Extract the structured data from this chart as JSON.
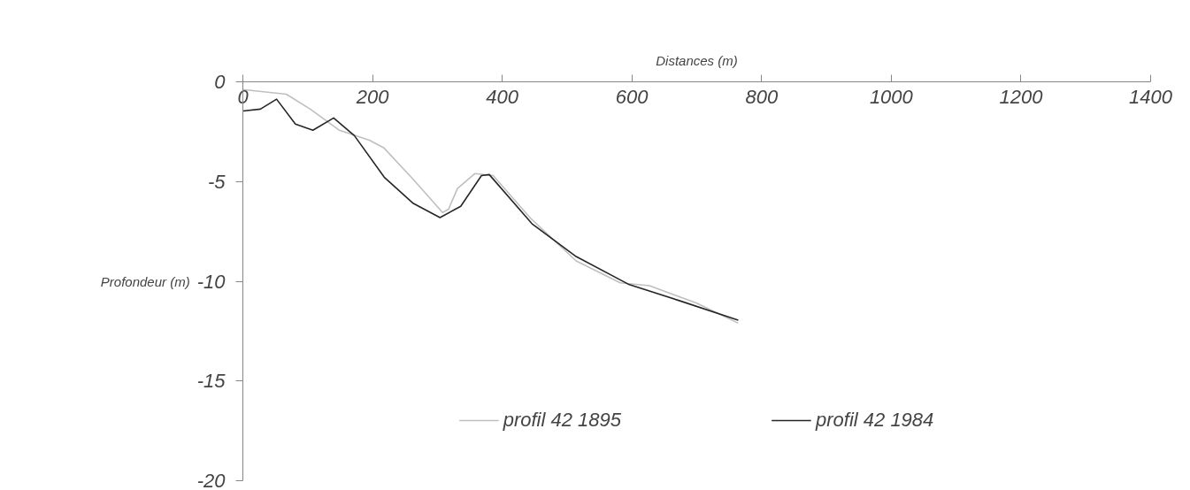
{
  "chart_data": {
    "type": "line",
    "xlabel": "Distances (m)",
    "ylabel": "Profondeur (m)",
    "xlim": [
      0,
      1400
    ],
    "xticks": [
      0,
      200,
      400,
      600,
      800,
      1000,
      1200,
      1400
    ],
    "ylim": [
      -20,
      0
    ],
    "yticks": [
      -20,
      -15,
      -10,
      -5,
      0
    ],
    "grid": false,
    "legend": "bottom",
    "marker": "none",
    "line_style": "solid",
    "series": [
      {
        "name": "profil 42 1895",
        "color": "#bfbfbf",
        "x": [
          0,
          67,
          104,
          149,
          195,
          217,
          263,
          308,
          317,
          331,
          358,
          386,
          444,
          514,
          582,
          627,
          700,
          764
        ],
        "values": [
          -0.39,
          -0.62,
          -1.37,
          -2.43,
          -2.93,
          -3.3,
          -4.9,
          -6.55,
          -6.4,
          -5.35,
          -4.6,
          -4.7,
          -6.85,
          -8.98,
          -10.08,
          -10.22,
          -11.1,
          -12.1
        ]
      },
      {
        "name": "profil 42 1984",
        "color": "#262626",
        "x": [
          0,
          27,
          52,
          81,
          108,
          140,
          172,
          218,
          263,
          304,
          336,
          368,
          380,
          446,
          514,
          596,
          673,
          764
        ],
        "values": [
          -1.46,
          -1.37,
          -0.87,
          -2.12,
          -2.43,
          -1.81,
          -2.7,
          -4.78,
          -6.1,
          -6.81,
          -6.24,
          -4.7,
          -4.65,
          -7.12,
          -8.76,
          -10.17,
          -10.97,
          -11.95
        ]
      }
    ]
  }
}
